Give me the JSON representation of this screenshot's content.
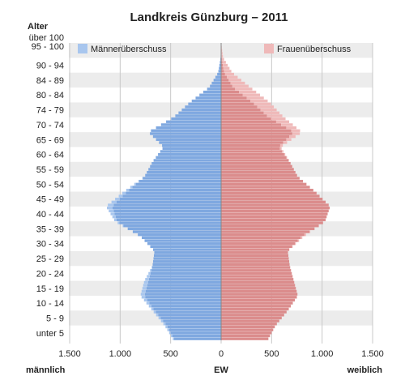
{
  "chart_data": {
    "type": "bar",
    "title": "Landkreis Günzburg – 2011",
    "y_axis_title": "Alter",
    "x_axis_title": "EW",
    "left_label": "männlich",
    "right_label": "weiblich",
    "x_ticks": [
      "1.500",
      "1.000",
      "500",
      "0",
      "500",
      "1.000",
      "1.500"
    ],
    "x_tick_values": [
      -1500,
      -1000,
      -500,
      0,
      500,
      1000,
      1500
    ],
    "xlim": [
      -1500,
      1500
    ],
    "age_range": [
      0,
      100
    ],
    "age_labels": [
      "über 100",
      "95 - 100",
      "90 - 94",
      "84 - 89",
      "80 - 84",
      "74 - 79",
      "70 - 74",
      "65 - 69",
      "60 - 64",
      "55 - 59",
      "50 - 54",
      "45 - 49",
      "40 - 44",
      "35 - 39",
      "30 - 34",
      "25 - 29",
      "20 - 24",
      "15 - 19",
      "10 - 14",
      "5 - 9",
      "unter 5"
    ],
    "legend": [
      {
        "label": "Männerüberschuss",
        "color": "#a8c6ee"
      },
      {
        "label": "Frauenüberschuss",
        "color": "#efb9b9"
      }
    ],
    "colors": {
      "male": "#7fa8e0",
      "female": "#db8c8c",
      "male_excess": "#a8c6ee",
      "female_excess": "#efb9b9",
      "band": "#ececec"
    },
    "series": [
      {
        "name": "Männer",
        "ages": [
          0,
          5,
          10,
          15,
          20,
          25,
          30,
          35,
          40,
          45,
          50,
          55,
          60,
          65,
          70,
          75,
          80,
          85,
          90,
          95,
          100
        ],
        "values": [
          470,
          560,
          680,
          800,
          760,
          680,
          660,
          800,
          1050,
          1140,
          960,
          760,
          680,
          570,
          720,
          470,
          310,
          120,
          30,
          5,
          0
        ]
      },
      {
        "name": "Frauen",
        "ages": [
          0,
          5,
          10,
          15,
          20,
          25,
          30,
          35,
          40,
          45,
          50,
          55,
          60,
          65,
          70,
          75,
          80,
          85,
          90,
          95,
          100
        ],
        "values": [
          460,
          540,
          660,
          760,
          720,
          680,
          660,
          820,
          1030,
          1080,
          930,
          760,
          680,
          590,
          800,
          620,
          480,
          290,
          110,
          20,
          0
        ]
      }
    ]
  }
}
